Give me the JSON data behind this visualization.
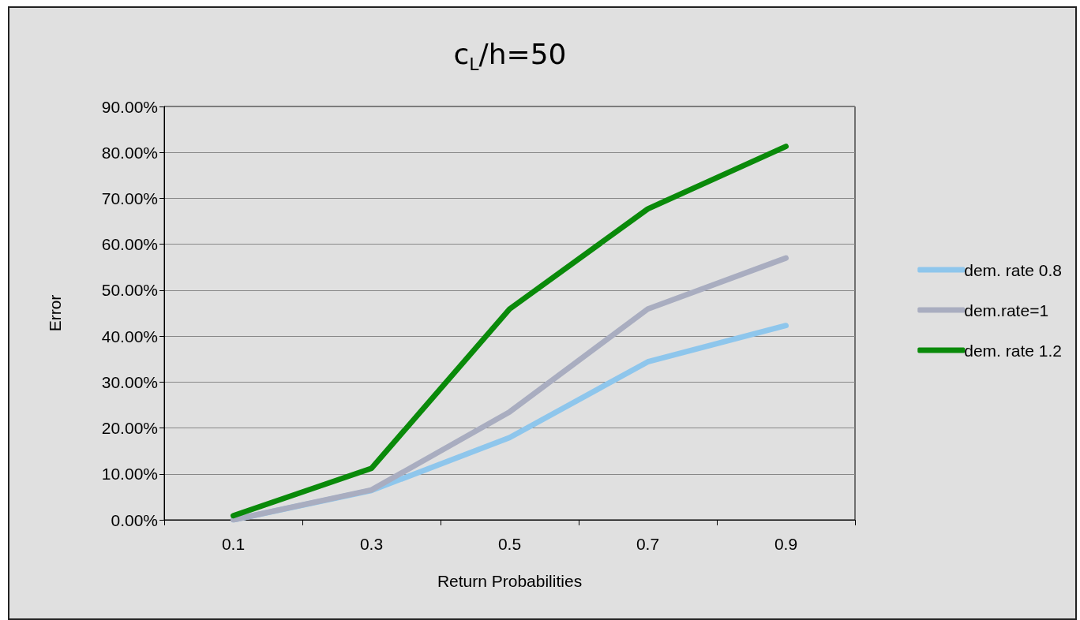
{
  "chart_data": {
    "type": "line",
    "title": "c$_{L}$/h=50",
    "xlabel": "Return Probabilities",
    "ylabel": "Error",
    "categories": [
      "0.1",
      "0.3",
      "0.5",
      "0.7",
      "0.9"
    ],
    "series": [
      {
        "name": "dem. rate 0.8",
        "color": "#8ec6ec",
        "values": [
          0,
          6.4,
          17.9,
          34.4,
          42.3
        ]
      },
      {
        "name": "dem.rate=1",
        "color": "#a9adc0",
        "values": [
          0,
          6.5,
          23.5,
          45.9,
          57.0
        ]
      },
      {
        "name": "dem. rate 1.2",
        "color": "#0a8a0a",
        "values": [
          0.9,
          11.2,
          45.9,
          67.7,
          81.3
        ]
      }
    ],
    "ylim": [
      0,
      90
    ],
    "yticks": [
      {
        "value": 0,
        "label": "0.00%"
      },
      {
        "value": 10,
        "label": "10.00%"
      },
      {
        "value": 20,
        "label": "20.00%"
      },
      {
        "value": 30,
        "label": "30.00%"
      },
      {
        "value": 40,
        "label": "40.00%"
      },
      {
        "value": 50,
        "label": "50.00%"
      },
      {
        "value": 60,
        "label": "60.00%"
      },
      {
        "value": 70,
        "label": "70.00%"
      },
      {
        "value": 80,
        "label": "80.00%"
      },
      {
        "value": 90,
        "label": "90.00%"
      }
    ],
    "grid": "y",
    "legend": "right",
    "marker": "none",
    "line_style": "solid"
  }
}
